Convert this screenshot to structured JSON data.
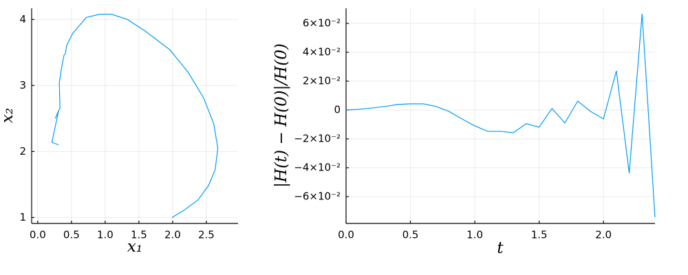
{
  "chart_data": [
    {
      "type": "line",
      "xlabel": "x₁",
      "ylabel": "x₂",
      "x": [
        1.99,
        2.17,
        2.38,
        2.53,
        2.63,
        2.67,
        2.61,
        2.46,
        2.23,
        1.96,
        1.6,
        1.33,
        1.09,
        0.92,
        0.72,
        0.52,
        0.43,
        0.41,
        0.39,
        0.35,
        0.32,
        0.33,
        0.26,
        0.31,
        0.21,
        0.31
      ],
      "series": [
        {
          "color": "#009af9",
          "values": [
            1.0,
            1.11,
            1.27,
            1.48,
            1.72,
            2.05,
            2.42,
            2.81,
            3.2,
            3.54,
            3.82,
            4.0,
            4.08,
            4.08,
            4.03,
            3.79,
            3.61,
            3.48,
            3.46,
            3.25,
            3.04,
            2.66,
            2.5,
            2.62,
            2.14,
            2.1
          ]
        }
      ],
      "xlim": [
        -0.09,
        2.97
      ],
      "ylim": [
        0.91,
        4.17
      ],
      "xticks": [
        {
          "value": 0,
          "label": "0.0"
        },
        0.5,
        {
          "value": 1,
          "label": "1.0"
        },
        1.5,
        {
          "value": 2,
          "label": "2.0"
        },
        2.5
      ],
      "yticks": [
        1,
        2,
        3,
        4
      ],
      "grid": true
    },
    {
      "type": "line",
      "xlabel": "t",
      "ylabel": "|H(t) − H(0)|/H(0)",
      "x": [
        0,
        0.1,
        0.2,
        0.3,
        0.4,
        0.5,
        0.6,
        0.7,
        0.8,
        0.9,
        1.0,
        1.1,
        1.2,
        1.3,
        1.4,
        1.5,
        1.6,
        1.7,
        1.8,
        1.9,
        2.0,
        2.1,
        2.2,
        2.3,
        2.4
      ],
      "series": [
        {
          "color": "#009af9",
          "values": [
            0,
            0.0005,
            0.0014,
            0.0024,
            0.0038,
            0.0043,
            0.0043,
            0.0024,
            -0.001,
            -0.0062,
            -0.011,
            -0.0148,
            -0.0148,
            -0.0157,
            -0.0095,
            -0.0119,
            0.001,
            -0.009,
            0.0062,
            -0.001,
            -0.0062,
            0.0271,
            -0.0438,
            0.0667,
            -0.0743
          ]
        }
      ],
      "xlim": [
        0,
        2.4
      ],
      "ylim": [
        -0.0786,
        0.0705
      ],
      "xticks": [
        {
          "value": 0,
          "label": "0.0"
        },
        0.5,
        {
          "value": 1,
          "label": "1.0"
        },
        1.5,
        {
          "value": 2,
          "label": "2.0"
        }
      ],
      "yticks": [
        {
          "value": -0.06,
          "label": "−6×10⁻²"
        },
        {
          "value": -0.04,
          "label": "−4×10⁻²"
        },
        {
          "value": -0.02,
          "label": "−2×10⁻²"
        },
        0,
        {
          "value": 0.02,
          "label": "2×10⁻²"
        },
        {
          "value": 0.04,
          "label": "4×10⁻²"
        },
        {
          "value": 0.06,
          "label": "6×10⁻²"
        }
      ],
      "grid": true
    }
  ]
}
